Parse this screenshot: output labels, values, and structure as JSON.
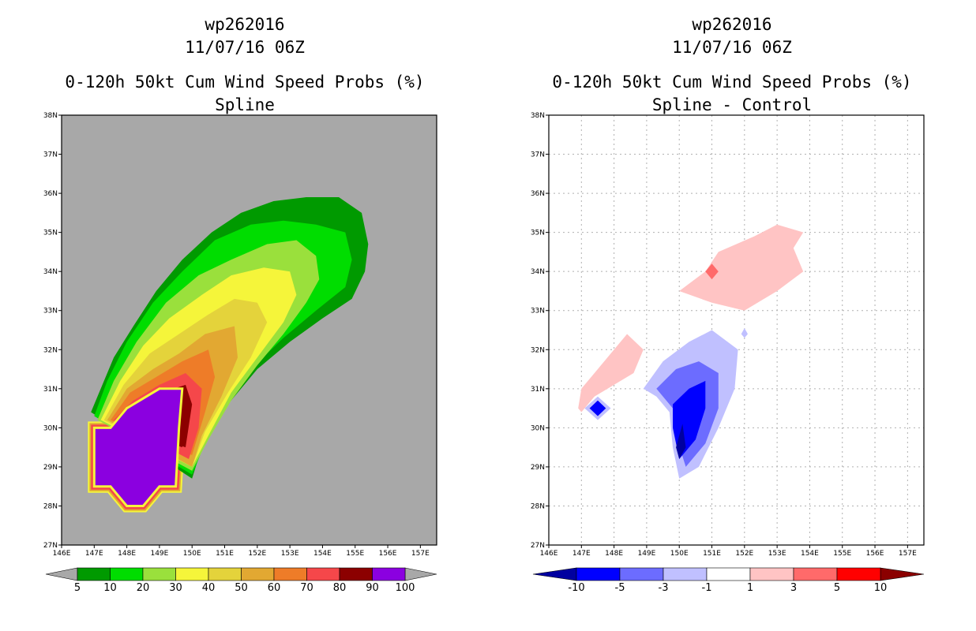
{
  "chart_data": [
    {
      "type": "heatmap",
      "storm_id": "wp262016",
      "datetime": "11/07/16 06Z",
      "title": "0-120h 50kt Cum Wind Speed Probs (%)",
      "subtitle": "Spline",
      "lon_ticks": [
        "146E",
        "147E",
        "148E",
        "149E",
        "150E",
        "151E",
        "152E",
        "153E",
        "154E",
        "155E",
        "156E",
        "157E"
      ],
      "lat_ticks": [
        "27N",
        "28N",
        "29N",
        "30N",
        "31N",
        "32N",
        "33N",
        "34N",
        "35N",
        "36N",
        "37N",
        "38N"
      ],
      "xlim": [
        146,
        157.5
      ],
      "ylim": [
        27,
        38
      ],
      "background": "#a8a8a8",
      "colorbar": {
        "labels": [
          "5",
          "10",
          "20",
          "30",
          "40",
          "50",
          "60",
          "70",
          "80",
          "90",
          "100"
        ],
        "colors": [
          "#009a00",
          "#00dd00",
          "#9ae03c",
          "#f5f53a",
          "#e4d33b",
          "#e2a832",
          "#ee7c28",
          "#f5474a",
          "#8c0000",
          "#8b00e0"
        ]
      },
      "contours": [
        {
          "level": 5,
          "color": "#009a00",
          "points": [
            [
              146.9,
              30.4
            ],
            [
              147.2,
              31.0
            ],
            [
              147.6,
              31.8
            ],
            [
              148.2,
              32.6
            ],
            [
              148.9,
              33.5
            ],
            [
              149.7,
              34.3
            ],
            [
              150.6,
              35.0
            ],
            [
              151.5,
              35.5
            ],
            [
              152.5,
              35.8
            ],
            [
              153.5,
              35.9
            ],
            [
              154.5,
              35.9
            ],
            [
              155.2,
              35.5
            ],
            [
              155.4,
              34.7
            ],
            [
              155.3,
              34.0
            ],
            [
              154.9,
              33.3
            ],
            [
              154.0,
              32.8
            ],
            [
              153.0,
              32.2
            ],
            [
              152.0,
              31.5
            ],
            [
              151.1,
              30.6
            ],
            [
              150.3,
              29.5
            ],
            [
              150.0,
              28.7
            ]
          ]
        },
        {
          "level": 10,
          "color": "#00dd00",
          "points": [
            [
              147.0,
              30.3
            ],
            [
              147.4,
              31.2
            ],
            [
              148.0,
              32.2
            ],
            [
              148.8,
              33.2
            ],
            [
              149.7,
              34.0
            ],
            [
              150.7,
              34.8
            ],
            [
              151.8,
              35.2
            ],
            [
              152.8,
              35.3
            ],
            [
              153.8,
              35.2
            ],
            [
              154.7,
              35.0
            ],
            [
              154.9,
              34.3
            ],
            [
              154.7,
              33.6
            ],
            [
              153.8,
              33.0
            ],
            [
              152.8,
              32.3
            ],
            [
              151.8,
              31.5
            ],
            [
              151.0,
              30.6
            ],
            [
              150.4,
              29.6
            ],
            [
              150.0,
              28.8
            ]
          ]
        },
        {
          "level": 20,
          "color": "#9ae03c",
          "points": [
            [
              147.1,
              30.2
            ],
            [
              147.6,
              31.2
            ],
            [
              148.3,
              32.2
            ],
            [
              149.2,
              33.2
            ],
            [
              150.2,
              33.9
            ],
            [
              151.2,
              34.3
            ],
            [
              152.3,
              34.7
            ],
            [
              153.2,
              34.8
            ],
            [
              153.8,
              34.4
            ],
            [
              153.9,
              33.8
            ],
            [
              153.5,
              33.2
            ],
            [
              152.8,
              32.4
            ],
            [
              152.0,
              31.6
            ],
            [
              151.2,
              30.7
            ],
            [
              150.5,
              29.7
            ],
            [
              150.0,
              28.9
            ]
          ]
        },
        {
          "level": 30,
          "color": "#f5f53a",
          "points": [
            [
              147.2,
              30.2
            ],
            [
              147.8,
              31.2
            ],
            [
              148.5,
              32.1
            ],
            [
              149.3,
              32.8
            ],
            [
              150.3,
              33.4
            ],
            [
              151.2,
              33.9
            ],
            [
              152.2,
              34.1
            ],
            [
              153.0,
              34.0
            ],
            [
              153.2,
              33.4
            ],
            [
              152.8,
              32.7
            ],
            [
              152.0,
              31.8
            ],
            [
              151.2,
              30.9
            ],
            [
              150.5,
              29.8
            ],
            [
              150.0,
              29.0
            ]
          ]
        },
        {
          "level": 40,
          "color": "#e4d33b",
          "points": [
            [
              147.3,
              30.2
            ],
            [
              147.9,
              31.1
            ],
            [
              148.7,
              31.9
            ],
            [
              149.6,
              32.4
            ],
            [
              150.5,
              32.9
            ],
            [
              151.3,
              33.3
            ],
            [
              152.0,
              33.2
            ],
            [
              152.3,
              32.7
            ],
            [
              151.8,
              31.8
            ],
            [
              151.1,
              30.9
            ],
            [
              150.4,
              29.9
            ],
            [
              150.0,
              29.0
            ]
          ]
        },
        {
          "level": 50,
          "color": "#e2a832",
          "points": [
            [
              147.4,
              30.2
            ],
            [
              148.0,
              31.0
            ],
            [
              148.8,
              31.5
            ],
            [
              149.6,
              31.9
            ],
            [
              150.4,
              32.4
            ],
            [
              151.3,
              32.6
            ],
            [
              151.4,
              31.8
            ],
            [
              150.9,
              30.8
            ],
            [
              150.3,
              29.8
            ],
            [
              150.0,
              29.0
            ]
          ]
        },
        {
          "level": 60,
          "color": "#ee7c28",
          "points": [
            [
              147.5,
              30.2
            ],
            [
              148.1,
              30.9
            ],
            [
              148.9,
              31.3
            ],
            [
              149.7,
              31.7
            ],
            [
              150.5,
              32.0
            ],
            [
              150.7,
              31.3
            ],
            [
              150.4,
              30.4
            ],
            [
              150.0,
              29.3
            ]
          ]
        },
        {
          "level": 70,
          "color": "#f5474a",
          "points": [
            [
              147.6,
              30.2
            ],
            [
              148.2,
              30.7
            ],
            [
              149.0,
              31.1
            ],
            [
              149.8,
              31.4
            ],
            [
              150.3,
              31.0
            ],
            [
              150.2,
              30.0
            ],
            [
              149.9,
              29.2
            ]
          ]
        },
        {
          "level": 80,
          "color": "#8c0000",
          "points": [
            [
              147.7,
              30.1
            ],
            [
              148.3,
              30.6
            ],
            [
              149.1,
              30.9
            ],
            [
              149.8,
              31.1
            ],
            [
              150.0,
              30.6
            ],
            [
              149.8,
              29.5
            ]
          ]
        },
        {
          "level": 90,
          "color": "#8c0000",
          "points": [
            [
              147.8,
              30.1
            ],
            [
              148.4,
              30.5
            ],
            [
              149.2,
              30.8
            ],
            [
              149.7,
              30.8
            ],
            [
              149.7,
              29.5
            ]
          ]
        },
        {
          "level": 100,
          "color": "#8b00e0",
          "points": [
            [
              147.0,
              30.0
            ],
            [
              147.5,
              30.0
            ],
            [
              148.0,
              30.5
            ],
            [
              148.6,
              30.8
            ],
            [
              149.0,
              31.0
            ],
            [
              149.7,
              31.0
            ],
            [
              149.6,
              30.0
            ],
            [
              149.5,
              28.5
            ],
            [
              149.0,
              28.5
            ],
            [
              148.5,
              28.0
            ],
            [
              148.0,
              28.0
            ],
            [
              147.5,
              28.5
            ],
            [
              147.0,
              28.5
            ]
          ]
        }
      ],
      "core_fill": {
        "color": "#8b00e0",
        "points": [
          [
            147.0,
            30.0
          ],
          [
            147.5,
            30.0
          ],
          [
            148.0,
            30.5
          ],
          [
            148.6,
            30.8
          ],
          [
            149.0,
            31.0
          ],
          [
            149.7,
            31.0
          ],
          [
            149.6,
            30.0
          ],
          [
            149.5,
            28.5
          ],
          [
            149.0,
            28.5
          ],
          [
            148.5,
            28.0
          ],
          [
            148.0,
            28.0
          ],
          [
            147.5,
            28.5
          ],
          [
            147.0,
            28.5
          ]
        ]
      }
    },
    {
      "type": "heatmap",
      "storm_id": "wp262016",
      "datetime": "11/07/16 06Z",
      "title": "0-120h 50kt Cum Wind Speed Probs (%)",
      "subtitle": "Spline - Control",
      "lon_ticks": [
        "146E",
        "147E",
        "148E",
        "149E",
        "150E",
        "151E",
        "152E",
        "153E",
        "154E",
        "155E",
        "156E",
        "157E"
      ],
      "lat_ticks": [
        "27N",
        "28N",
        "29N",
        "30N",
        "31N",
        "32N",
        "33N",
        "34N",
        "35N",
        "36N",
        "37N",
        "38N"
      ],
      "xlim": [
        146,
        157.5
      ],
      "ylim": [
        27,
        38
      ],
      "background": "#ffffff",
      "grid": "dotted",
      "colorbar": {
        "labels": [
          "-10",
          "-5",
          "-3",
          "-1",
          "1",
          "3",
          "5",
          "10"
        ],
        "colors": [
          "#0000a0",
          "#0000ff",
          "#6c6cff",
          "#c0c0ff",
          "#ffffff",
          "#ffc4c4",
          "#ff6a6a",
          "#ff0000",
          "#8b0000"
        ]
      },
      "contours": [
        {
          "level": 1,
          "color": "#ffc4c4",
          "points": [
            [
              150.0,
              33.5
            ],
            [
              150.8,
              34.0
            ],
            [
              151.2,
              34.5
            ],
            [
              152.3,
              34.9
            ],
            [
              153.0,
              35.2
            ],
            [
              153.8,
              35.0
            ],
            [
              153.5,
              34.6
            ],
            [
              153.8,
              34.0
            ],
            [
              153.0,
              33.5
            ],
            [
              152.0,
              33.0
            ],
            [
              151.0,
              33.2
            ]
          ]
        },
        {
          "level": 3,
          "color": "#ff6a6a",
          "points": [
            [
              150.8,
              34.0
            ],
            [
              151.0,
              34.2
            ],
            [
              151.2,
              34.0
            ],
            [
              151.0,
              33.8
            ]
          ]
        },
        {
          "level": 1,
          "color": "#ffc4c4",
          "points": [
            [
              146.9,
              30.5
            ],
            [
              147.0,
              31.0
            ],
            [
              147.5,
              31.5
            ],
            [
              148.0,
              32.0
            ],
            [
              148.4,
              32.4
            ],
            [
              148.9,
              32.0
            ],
            [
              148.6,
              31.4
            ],
            [
              148.0,
              31.1
            ],
            [
              147.4,
              30.8
            ],
            [
              147.0,
              30.4
            ]
          ]
        },
        {
          "level": -1,
          "color": "#c0c0ff",
          "points": [
            [
              148.9,
              31.0
            ],
            [
              149.5,
              31.7
            ],
            [
              150.3,
              32.2
            ],
            [
              151.0,
              32.5
            ],
            [
              151.8,
              32.0
            ],
            [
              151.7,
              31.0
            ],
            [
              151.2,
              30.0
            ],
            [
              150.6,
              29.0
            ],
            [
              150.0,
              28.7
            ],
            [
              149.8,
              29.5
            ],
            [
              149.7,
              30.4
            ],
            [
              149.3,
              30.8
            ]
          ]
        },
        {
          "level": -3,
          "color": "#6c6cff",
          "points": [
            [
              149.3,
              31.0
            ],
            [
              149.9,
              31.5
            ],
            [
              150.6,
              31.7
            ],
            [
              151.2,
              31.4
            ],
            [
              151.2,
              30.5
            ],
            [
              150.8,
              29.6
            ],
            [
              150.2,
              29.0
            ],
            [
              149.9,
              29.8
            ],
            [
              149.8,
              30.5
            ]
          ]
        },
        {
          "level": -5,
          "color": "#0000ff",
          "points": [
            [
              149.8,
              30.6
            ],
            [
              150.3,
              31.0
            ],
            [
              150.8,
              31.2
            ],
            [
              150.8,
              30.5
            ],
            [
              150.5,
              29.7
            ],
            [
              150.0,
              29.2
            ],
            [
              149.8,
              30.0
            ]
          ]
        },
        {
          "level": -10,
          "color": "#0000a0",
          "points": [
            [
              149.9,
              29.5
            ],
            [
              150.1,
              30.1
            ],
            [
              150.2,
              29.5
            ],
            [
              150.0,
              29.2
            ]
          ]
        },
        {
          "level": -1,
          "color": "#c0c0ff",
          "points": [
            [
              147.1,
              30.5
            ],
            [
              147.5,
              30.8
            ],
            [
              147.9,
              30.5
            ],
            [
              147.5,
              30.2
            ]
          ]
        },
        {
          "level": -5,
          "color": "#0000ff",
          "points": [
            [
              147.25,
              30.5
            ],
            [
              147.5,
              30.7
            ],
            [
              147.75,
              30.5
            ],
            [
              147.5,
              30.3
            ]
          ]
        },
        {
          "level": -1,
          "color": "#c0c0ff",
          "points": [
            [
              151.9,
              32.4
            ],
            [
              152.0,
              32.55
            ],
            [
              152.1,
              32.4
            ],
            [
              152.0,
              32.3
            ]
          ]
        }
      ]
    }
  ]
}
